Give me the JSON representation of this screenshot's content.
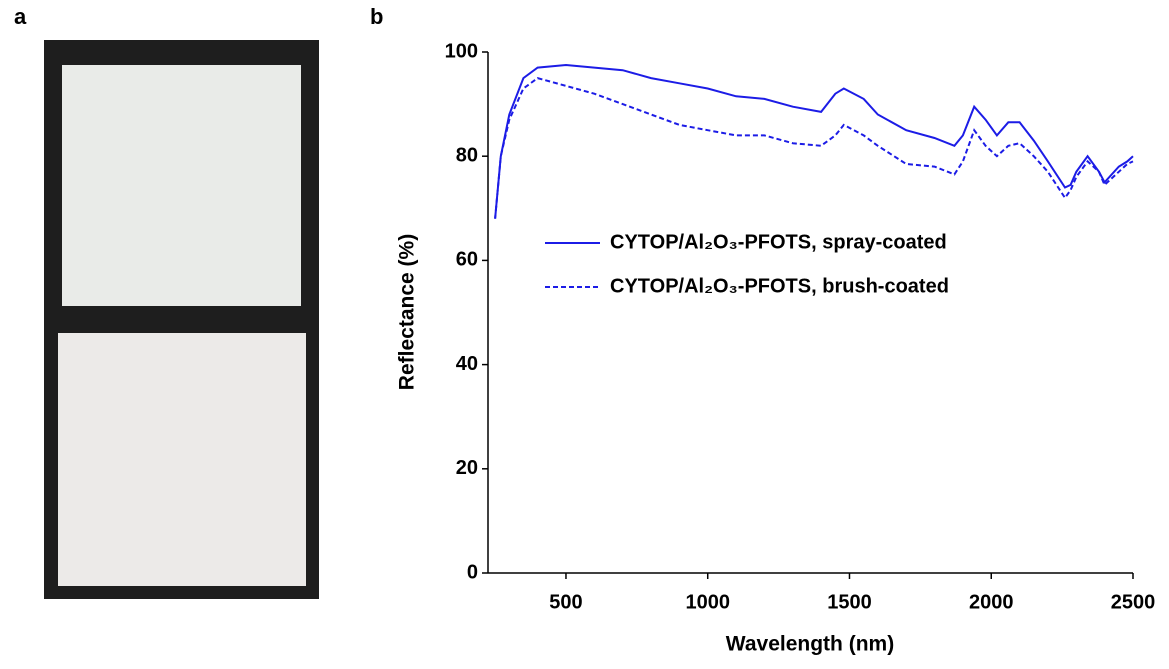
{
  "panel_labels": [
    "a",
    "b"
  ],
  "chart_data": {
    "type": "line",
    "x_label": "Wavelength (nm)",
    "y_label": "Reflectance (%)",
    "xlim": [
      225,
      2500
    ],
    "ylim": [
      0,
      100
    ],
    "xticks": [
      500,
      1000,
      1500,
      2000,
      2500
    ],
    "yticks": [
      0,
      20,
      40,
      60,
      80,
      100
    ],
    "x": [
      250,
      270,
      300,
      350,
      400,
      500,
      600,
      700,
      800,
      900,
      1000,
      1100,
      1200,
      1300,
      1400,
      1450,
      1480,
      1550,
      1600,
      1700,
      1800,
      1870,
      1900,
      1940,
      1980,
      2020,
      2060,
      2100,
      2150,
      2200,
      2260,
      2280,
      2300,
      2340,
      2380,
      2400,
      2450,
      2480,
      2500
    ],
    "series": [
      {
        "name": "CYTOP/Al₂O₃-PFOTS, spray-coated",
        "color": "#1c1ce6",
        "dash": "solid",
        "values": [
          68,
          80,
          88,
          95,
          97,
          97.5,
          97,
          96.5,
          95,
          94,
          93,
          91.5,
          91,
          89.5,
          88.5,
          92,
          93,
          91,
          88,
          85,
          83.5,
          82,
          84,
          89.5,
          87,
          84,
          86.5,
          86.5,
          83,
          79,
          74,
          74.5,
          77,
          80,
          77,
          75,
          78,
          79,
          80
        ]
      },
      {
        "name": "CYTOP/Al₂O₃-PFOTS, brush-coated",
        "color": "#1c1ce6",
        "dash": "dashed",
        "values": [
          68,
          80,
          87,
          93,
          95,
          93.5,
          92,
          90,
          88,
          86,
          85,
          84,
          84,
          82.5,
          82,
          84,
          86,
          84,
          82,
          78.5,
          78,
          76.5,
          79,
          85,
          82,
          80,
          82,
          82.5,
          80,
          77,
          72,
          73.5,
          76,
          79,
          77,
          74.5,
          77,
          78.5,
          79
        ]
      }
    ]
  }
}
